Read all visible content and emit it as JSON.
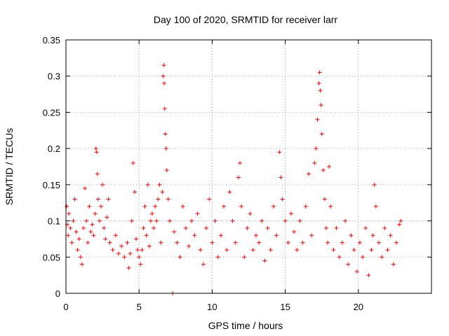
{
  "chart_data": {
    "type": "scatter",
    "title": "Day 100 of 2020, SRMTID for receiver larr",
    "xlabel": "GPS time / hours",
    "ylabel": "SRMTID / TECUs",
    "xlim": [
      0,
      25
    ],
    "ylim": [
      0,
      0.35
    ],
    "xticks": [
      0,
      5,
      10,
      15,
      20
    ],
    "xtick_labels": [
      "0",
      "5",
      "10",
      "15",
      "20"
    ],
    "yticks": [
      0,
      0.05,
      0.1,
      0.15,
      0.2,
      0.25,
      0.3,
      0.35
    ],
    "ytick_labels": [
      "0",
      "0.05",
      "0.1",
      "0.15",
      "0.2",
      "0.25",
      "0.3",
      "0.35"
    ],
    "grid": true,
    "marker": "+",
    "color": "#ff0000",
    "series": [
      {
        "name": "SRMTID",
        "points": [
          [
            0.05,
            0.12
          ],
          [
            0.1,
            0.095
          ],
          [
            0.15,
            0.08
          ],
          [
            0.2,
            0.11
          ],
          [
            0.3,
            0.09
          ],
          [
            0.4,
            0.07
          ],
          [
            0.5,
            0.1
          ],
          [
            0.6,
            0.13
          ],
          [
            0.7,
            0.085
          ],
          [
            0.8,
            0.06
          ],
          [
            0.9,
            0.075
          ],
          [
            1.0,
            0.05
          ],
          [
            1.1,
            0.04
          ],
          [
            1.2,
            0.09
          ],
          [
            1.3,
            0.145
          ],
          [
            1.4,
            0.1
          ],
          [
            1.5,
            0.07
          ],
          [
            1.6,
            0.12
          ],
          [
            1.7,
            0.085
          ],
          [
            1.8,
            0.095
          ],
          [
            1.9,
            0.08
          ],
          [
            2.0,
            0.11
          ],
          [
            2.05,
            0.2
          ],
          [
            2.1,
            0.195
          ],
          [
            2.15,
            0.165
          ],
          [
            2.2,
            0.13
          ],
          [
            2.3,
            0.1
          ],
          [
            2.4,
            0.12
          ],
          [
            2.5,
            0.15
          ],
          [
            2.6,
            0.09
          ],
          [
            2.7,
            0.075
          ],
          [
            2.8,
            0.105
          ],
          [
            2.9,
            0.13
          ],
          [
            3.0,
            0.07
          ],
          [
            3.2,
            0.06
          ],
          [
            3.4,
            0.08
          ],
          [
            3.6,
            0.055
          ],
          [
            3.8,
            0.065
          ],
          [
            4.0,
            0.05
          ],
          [
            4.2,
            0.07
          ],
          [
            4.3,
            0.035
          ],
          [
            4.4,
            0.055
          ],
          [
            4.5,
            0.1
          ],
          [
            4.6,
            0.18
          ],
          [
            4.7,
            0.14
          ],
          [
            4.8,
            0.075
          ],
          [
            4.9,
            0.06
          ],
          [
            5.0,
            0.05
          ],
          [
            5.1,
            0.04
          ],
          [
            5.2,
            0.06
          ],
          [
            5.3,
            0.09
          ],
          [
            5.4,
            0.12
          ],
          [
            5.5,
            0.08
          ],
          [
            5.6,
            0.15
          ],
          [
            5.7,
            0.065
          ],
          [
            5.8,
            0.1
          ],
          [
            5.9,
            0.11
          ],
          [
            6.0,
            0.09
          ],
          [
            6.1,
            0.12
          ],
          [
            6.2,
            0.1
          ],
          [
            6.3,
            0.13
          ],
          [
            6.4,
            0.15
          ],
          [
            6.5,
            0.07
          ],
          [
            6.6,
            0.14
          ],
          [
            6.65,
            0.3
          ],
          [
            6.7,
            0.315
          ],
          [
            6.72,
            0.29
          ],
          [
            6.75,
            0.255
          ],
          [
            6.8,
            0.22
          ],
          [
            6.85,
            0.2
          ],
          [
            6.9,
            0.17
          ],
          [
            7.0,
            0.13
          ],
          [
            7.1,
            0.1
          ],
          [
            7.3,
            0.0
          ],
          [
            7.4,
            0.085
          ],
          [
            7.6,
            0.07
          ],
          [
            7.8,
            0.05
          ],
          [
            8.0,
            0.12
          ],
          [
            8.2,
            0.09
          ],
          [
            8.4,
            0.065
          ],
          [
            8.6,
            0.1
          ],
          [
            8.8,
            0.08
          ],
          [
            9.0,
            0.11
          ],
          [
            9.2,
            0.06
          ],
          [
            9.4,
            0.04
          ],
          [
            9.6,
            0.09
          ],
          [
            9.8,
            0.13
          ],
          [
            10.0,
            0.07
          ],
          [
            10.2,
            0.1
          ],
          [
            10.4,
            0.05
          ],
          [
            10.6,
            0.08
          ],
          [
            10.8,
            0.12
          ],
          [
            11.0,
            0.06
          ],
          [
            11.2,
            0.14
          ],
          [
            11.4,
            0.1
          ],
          [
            11.6,
            0.07
          ],
          [
            11.8,
            0.16
          ],
          [
            11.9,
            0.18
          ],
          [
            12.0,
            0.12
          ],
          [
            12.2,
            0.05
          ],
          [
            12.4,
            0.09
          ],
          [
            12.6,
            0.11
          ],
          [
            12.8,
            0.06
          ],
          [
            13.0,
            0.08
          ],
          [
            13.2,
            0.07
          ],
          [
            13.4,
            0.1
          ],
          [
            13.6,
            0.045
          ],
          [
            13.8,
            0.09
          ],
          [
            14.0,
            0.06
          ],
          [
            14.2,
            0.12
          ],
          [
            14.4,
            0.08
          ],
          [
            14.6,
            0.195
          ],
          [
            14.7,
            0.16
          ],
          [
            14.8,
            0.13
          ],
          [
            15.0,
            0.1
          ],
          [
            15.2,
            0.07
          ],
          [
            15.4,
            0.11
          ],
          [
            15.6,
            0.085
          ],
          [
            15.8,
            0.06
          ],
          [
            16.0,
            0.1
          ],
          [
            16.2,
            0.07
          ],
          [
            16.4,
            0.12
          ],
          [
            16.6,
            0.165
          ],
          [
            16.8,
            0.08
          ],
          [
            17.0,
            0.18
          ],
          [
            17.1,
            0.2
          ],
          [
            17.2,
            0.24
          ],
          [
            17.3,
            0.29
          ],
          [
            17.35,
            0.305
          ],
          [
            17.4,
            0.28
          ],
          [
            17.45,
            0.26
          ],
          [
            17.5,
            0.22
          ],
          [
            17.6,
            0.17
          ],
          [
            17.7,
            0.13
          ],
          [
            17.8,
            0.09
          ],
          [
            17.9,
            0.07
          ],
          [
            18.0,
            0.175
          ],
          [
            18.1,
            0.12
          ],
          [
            18.3,
            0.06
          ],
          [
            18.5,
            0.09
          ],
          [
            18.7,
            0.05
          ],
          [
            18.9,
            0.07
          ],
          [
            19.1,
            0.1
          ],
          [
            19.3,
            0.04
          ],
          [
            19.5,
            0.08
          ],
          [
            19.7,
            0.06
          ],
          [
            19.9,
            0.03
          ],
          [
            20.1,
            0.07
          ],
          [
            20.3,
            0.05
          ],
          [
            20.5,
            0.09
          ],
          [
            20.7,
            0.025
          ],
          [
            20.9,
            0.06
          ],
          [
            21.0,
            0.08
          ],
          [
            21.1,
            0.15
          ],
          [
            21.2,
            0.12
          ],
          [
            21.4,
            0.07
          ],
          [
            21.6,
            0.05
          ],
          [
            21.8,
            0.09
          ],
          [
            22.0,
            0.06
          ],
          [
            22.2,
            0.08
          ],
          [
            22.4,
            0.04
          ],
          [
            22.6,
            0.07
          ],
          [
            22.8,
            0.095
          ],
          [
            22.9,
            0.1
          ]
        ]
      }
    ]
  }
}
